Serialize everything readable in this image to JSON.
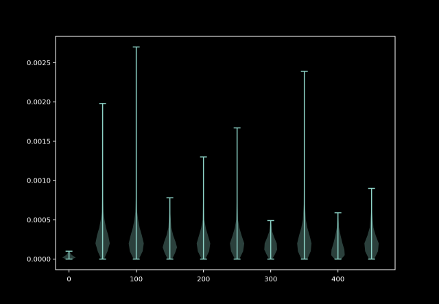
{
  "chart_data": {
    "type": "violin",
    "title": "",
    "xlabel": "",
    "ylabel": "",
    "xlim": [
      -20,
      485
    ],
    "ylim": [
      -0.000135,
      0.002835
    ],
    "x_ticks": [
      0,
      100,
      200,
      300,
      400
    ],
    "x_tick_labels": [
      "0",
      "100",
      "200",
      "300",
      "400"
    ],
    "y_ticks": [
      0.0,
      0.0005,
      0.001,
      0.0015,
      0.002,
      0.0025
    ],
    "y_tick_labels": [
      "0.0000",
      "0.0005",
      "0.0010",
      "0.0015",
      "0.0020",
      "0.0025"
    ],
    "grid": false,
    "colors": {
      "background": "#000000",
      "axes": "#ffffff",
      "line": "#8dd3c7",
      "violin_fill": "#8dd3c7"
    },
    "violins": [
      {
        "position": 0,
        "min": 0.0,
        "max": 0.0001,
        "density": [
          [
            0.0,
            0.45
          ],
          [
            2e-05,
            0.9
          ],
          [
            5e-05,
            0.4
          ],
          [
            8e-05,
            0.15
          ],
          [
            0.0001,
            0.05
          ]
        ]
      },
      {
        "position": 50,
        "min": 0.0,
        "max": 0.00198,
        "density": [
          [
            0.0,
            0.2
          ],
          [
            0.0001,
            0.65
          ],
          [
            0.0002,
            0.95
          ],
          [
            0.0003,
            0.75
          ],
          [
            0.0004,
            0.45
          ],
          [
            0.0005,
            0.25
          ],
          [
            0.0006,
            0.12
          ],
          [
            0.0008,
            0.06
          ],
          [
            0.0012,
            0.04
          ],
          [
            0.00198,
            0.02
          ]
        ]
      },
      {
        "position": 100,
        "min": 0.0,
        "max": 0.0027,
        "density": [
          [
            0.0,
            0.35
          ],
          [
            0.0001,
            0.85
          ],
          [
            0.0002,
            1.0
          ],
          [
            0.0003,
            0.75
          ],
          [
            0.0004,
            0.45
          ],
          [
            0.0005,
            0.25
          ],
          [
            0.0006,
            0.12
          ],
          [
            0.0008,
            0.05
          ],
          [
            0.0015,
            0.03
          ],
          [
            0.0027,
            0.02
          ]
        ]
      },
      {
        "position": 150,
        "min": 0.0,
        "max": 0.00078,
        "density": [
          [
            0.0,
            0.3
          ],
          [
            8e-05,
            0.7
          ],
          [
            0.00015,
            0.95
          ],
          [
            0.00022,
            0.75
          ],
          [
            0.0003,
            0.45
          ],
          [
            0.0004,
            0.2
          ],
          [
            0.0006,
            0.06
          ],
          [
            0.00078,
            0.03
          ]
        ]
      },
      {
        "position": 200,
        "min": 0.0,
        "max": 0.0013,
        "density": [
          [
            0.0,
            0.25
          ],
          [
            0.0001,
            0.75
          ],
          [
            0.0002,
            0.9
          ],
          [
            0.0003,
            0.6
          ],
          [
            0.0004,
            0.3
          ],
          [
            0.0005,
            0.12
          ],
          [
            0.0008,
            0.04
          ],
          [
            0.0013,
            0.02
          ]
        ]
      },
      {
        "position": 250,
        "min": 0.0,
        "max": 0.00167,
        "density": [
          [
            0.0,
            0.3
          ],
          [
            0.0001,
            0.8
          ],
          [
            0.0002,
            0.95
          ],
          [
            0.0003,
            0.6
          ],
          [
            0.0004,
            0.3
          ],
          [
            0.0005,
            0.12
          ],
          [
            0.0008,
            0.04
          ],
          [
            0.00167,
            0.02
          ]
        ]
      },
      {
        "position": 300,
        "min": 0.0,
        "max": 0.00049,
        "density": [
          [
            0.0,
            0.2
          ],
          [
            5e-05,
            0.5
          ],
          [
            0.00012,
            0.85
          ],
          [
            0.0002,
            0.8
          ],
          [
            0.00028,
            0.45
          ],
          [
            0.00035,
            0.2
          ],
          [
            0.00049,
            0.04
          ]
        ]
      },
      {
        "position": 350,
        "min": 0.0,
        "max": 0.00239,
        "density": [
          [
            0.0,
            0.4
          ],
          [
            0.0001,
            0.85
          ],
          [
            0.0002,
            0.95
          ],
          [
            0.0003,
            0.7
          ],
          [
            0.0004,
            0.4
          ],
          [
            0.0005,
            0.2
          ],
          [
            0.0007,
            0.08
          ],
          [
            0.0012,
            0.03
          ],
          [
            0.00239,
            0.02
          ]
        ]
      },
      {
        "position": 400,
        "min": 0.0,
        "max": 0.00059,
        "density": [
          [
            0.0,
            0.45
          ],
          [
            5e-05,
            0.9
          ],
          [
            0.00012,
            0.85
          ],
          [
            0.0002,
            0.6
          ],
          [
            0.0003,
            0.35
          ],
          [
            0.0004,
            0.15
          ],
          [
            0.00059,
            0.03
          ]
        ]
      },
      {
        "position": 450,
        "min": 0.0,
        "max": 0.0009,
        "density": [
          [
            0.0,
            0.35
          ],
          [
            0.0001,
            0.85
          ],
          [
            0.0002,
            0.95
          ],
          [
            0.0003,
            0.55
          ],
          [
            0.0004,
            0.25
          ],
          [
            0.0006,
            0.08
          ],
          [
            0.0009,
            0.03
          ]
        ]
      }
    ]
  }
}
